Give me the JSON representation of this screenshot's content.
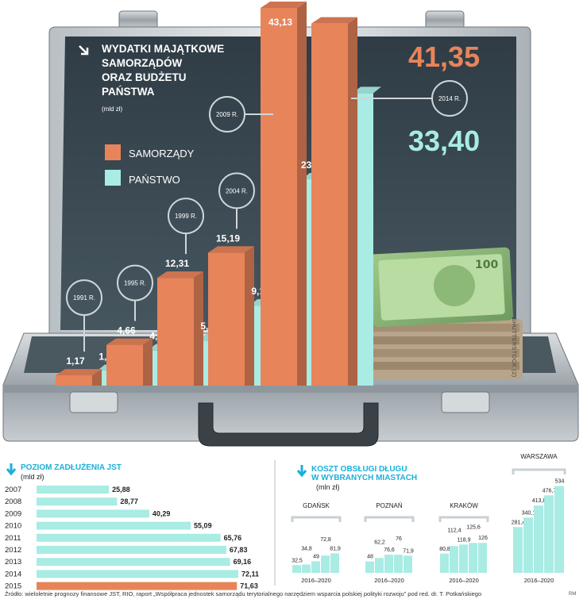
{
  "main_chart": {
    "title_lines": [
      "WYDATKI MAJĄTKOWE",
      "SAMORZĄDÓW",
      "ORAZ BUDŻETU",
      "PAŃSTWA"
    ],
    "unit": "(mld zł)",
    "legend": [
      {
        "name": "SAMORZĄDY",
        "color": "#e8845a"
      },
      {
        "name": "PAŃSTWO",
        "color": "#a8ece4"
      }
    ],
    "big_value_samorzady": "41,35",
    "big_value_panstwo": "33,40",
    "year_markers": [
      "1991 R.",
      "1995 R.",
      "1999 R.",
      "2004 R.",
      "2009 R.",
      "2014 R."
    ]
  },
  "chart_data": [
    {
      "type": "bar",
      "title": "WYDATKI MAJĄTKOWE SAMORZĄDÓW ORAZ BUDŻETU PAŃSTWA",
      "ylabel": "(mld zł)",
      "categories": [
        "1991 R.",
        "1995 R.",
        "1999 R.",
        "2004 R.",
        "2009 R.",
        "2014 R."
      ],
      "series": [
        {
          "name": "SAMORZĄDY",
          "values": [
            1.17,
            4.66,
            12.31,
            15.19,
            43.13,
            41.35
          ],
          "labels": [
            "1,17",
            "4,66",
            "12,31",
            "15,19",
            "43,13",
            "41,35"
          ]
        },
        {
          "name": "PAŃSTWO",
          "values": [
            1.68,
            4.01,
            5.15,
            9.14,
            23.56,
            33.4
          ],
          "labels": [
            "1,68",
            "4,01",
            "5,15",
            "9,14",
            "23,56",
            "33,40"
          ]
        }
      ]
    },
    {
      "type": "bar",
      "title": "POZIOM ZADŁUŻENIA JST",
      "ylabel": "(mld zł)",
      "categories": [
        "2007",
        "2008",
        "2009",
        "2010",
        "2011",
        "2012",
        "2013",
        "2014",
        "2015"
      ],
      "values": [
        25.88,
        28.77,
        40.29,
        55.09,
        65.76,
        67.83,
        69.16,
        72.11,
        71.63
      ],
      "labels": [
        "25,88",
        "28,77",
        "40,29",
        "55,09",
        "65,76",
        "67,83",
        "69,16",
        "72,11",
        "71,63"
      ]
    },
    {
      "type": "bar",
      "title": "KOSZT OBSŁUGI DŁUGU W WYBRANYCH MIASTACH",
      "ylabel": "(mln zł)",
      "period": "2016–2020",
      "cities": [
        {
          "name": "GDAŃSK",
          "values": [
            32.5,
            34.8,
            49,
            72.8,
            81.9
          ],
          "labels": [
            "32,5",
            "34,8",
            "49",
            "72,8",
            "81,9"
          ]
        },
        {
          "name": "POZNAŃ",
          "values": [
            48,
            62.2,
            76.6,
            76,
            71.9
          ],
          "labels": [
            "48",
            "62,2",
            "76,6",
            "76",
            "71,9"
          ]
        },
        {
          "name": "KRAKÓW",
          "values": [
            80.8,
            112.4,
            118.9,
            125.6,
            126
          ],
          "labels": [
            "80,8",
            "112,4",
            "118,9",
            "125,6",
            "126"
          ]
        },
        {
          "name": "WARSZAWA",
          "values": [
            281.4,
            340.1,
            413.8,
            476.7,
            534
          ],
          "labels": [
            "281,4",
            "340,1",
            "413,8",
            "476,7",
            "534"
          ]
        }
      ]
    }
  ],
  "footer": {
    "source": "Źródło: wieloletnie prognozy finansowe JST, RIO, raport „Współpraca jednostek samorządu terytorialnego narzędziem wsparcia polskiej polityki rozwoju” pod red. dr. T. Potkańskiego",
    "credit": "RM",
    "photo_credit": "SHUTTERSTOCK (2)"
  },
  "colors": {
    "samorzady": "#e8845a",
    "panstwo": "#a8ece4",
    "board": "#3b4a55",
    "cyan_text": "#1ab0d8",
    "debt_bar": "#a8ece4",
    "debt_bar_last": "#e8845a"
  }
}
